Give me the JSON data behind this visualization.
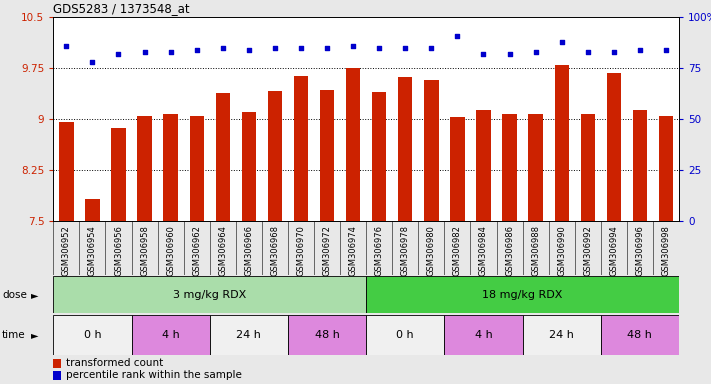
{
  "title": "GDS5283 / 1373548_at",
  "samples": [
    "GSM306952",
    "GSM306954",
    "GSM306956",
    "GSM306958",
    "GSM306960",
    "GSM306962",
    "GSM306964",
    "GSM306966",
    "GSM306968",
    "GSM306970",
    "GSM306972",
    "GSM306974",
    "GSM306976",
    "GSM306978",
    "GSM306980",
    "GSM306982",
    "GSM306984",
    "GSM306986",
    "GSM306988",
    "GSM306990",
    "GSM306992",
    "GSM306994",
    "GSM306996",
    "GSM306998"
  ],
  "bar_values": [
    8.95,
    7.82,
    8.87,
    9.05,
    9.08,
    9.04,
    9.38,
    9.1,
    9.42,
    9.63,
    9.43,
    9.75,
    9.4,
    9.62,
    9.58,
    9.03,
    9.13,
    9.08,
    9.08,
    9.8,
    9.08,
    9.68,
    9.13,
    9.04
  ],
  "percentile_values": [
    86,
    78,
    82,
    83,
    83,
    84,
    85,
    84,
    85,
    85,
    85,
    86,
    85,
    85,
    85,
    91,
    82,
    82,
    83,
    88,
    83,
    83,
    84,
    84
  ],
  "bar_color": "#cc2200",
  "dot_color": "#0000cc",
  "ylim_left": [
    7.5,
    10.5
  ],
  "ylim_right": [
    0,
    100
  ],
  "yticks_left": [
    7.5,
    8.25,
    9.0,
    9.75,
    10.5
  ],
  "yticks_right": [
    0,
    25,
    50,
    75,
    100
  ],
  "ytick_labels_left": [
    "7.5",
    "8.25",
    "9",
    "9.75",
    "10.5"
  ],
  "ytick_labels_right": [
    "0",
    "25",
    "50",
    "75",
    "100%"
  ],
  "hlines": [
    8.25,
    9.0,
    9.75
  ],
  "dose_groups": [
    {
      "label": "3 mg/kg RDX",
      "start": 0,
      "end": 12,
      "color": "#aaddaa"
    },
    {
      "label": "18 mg/kg RDX",
      "start": 12,
      "end": 24,
      "color": "#44cc44"
    }
  ],
  "time_groups": [
    {
      "label": "0 h",
      "start": 0,
      "end": 3,
      "color": "#f0f0f0"
    },
    {
      "label": "4 h",
      "start": 3,
      "end": 6,
      "color": "#dd88dd"
    },
    {
      "label": "24 h",
      "start": 6,
      "end": 9,
      "color": "#f0f0f0"
    },
    {
      "label": "48 h",
      "start": 9,
      "end": 12,
      "color": "#dd88dd"
    },
    {
      "label": "0 h",
      "start": 12,
      "end": 15,
      "color": "#f0f0f0"
    },
    {
      "label": "4 h",
      "start": 15,
      "end": 18,
      "color": "#dd88dd"
    },
    {
      "label": "24 h",
      "start": 18,
      "end": 21,
      "color": "#f0f0f0"
    },
    {
      "label": "48 h",
      "start": 21,
      "end": 24,
      "color": "#dd88dd"
    }
  ],
  "legend_bar_label": "transformed count",
  "legend_dot_label": "percentile rank within the sample",
  "background_color": "#e8e8e8",
  "plot_bg_color": "#ffffff",
  "xtick_bg_color": "#cccccc"
}
